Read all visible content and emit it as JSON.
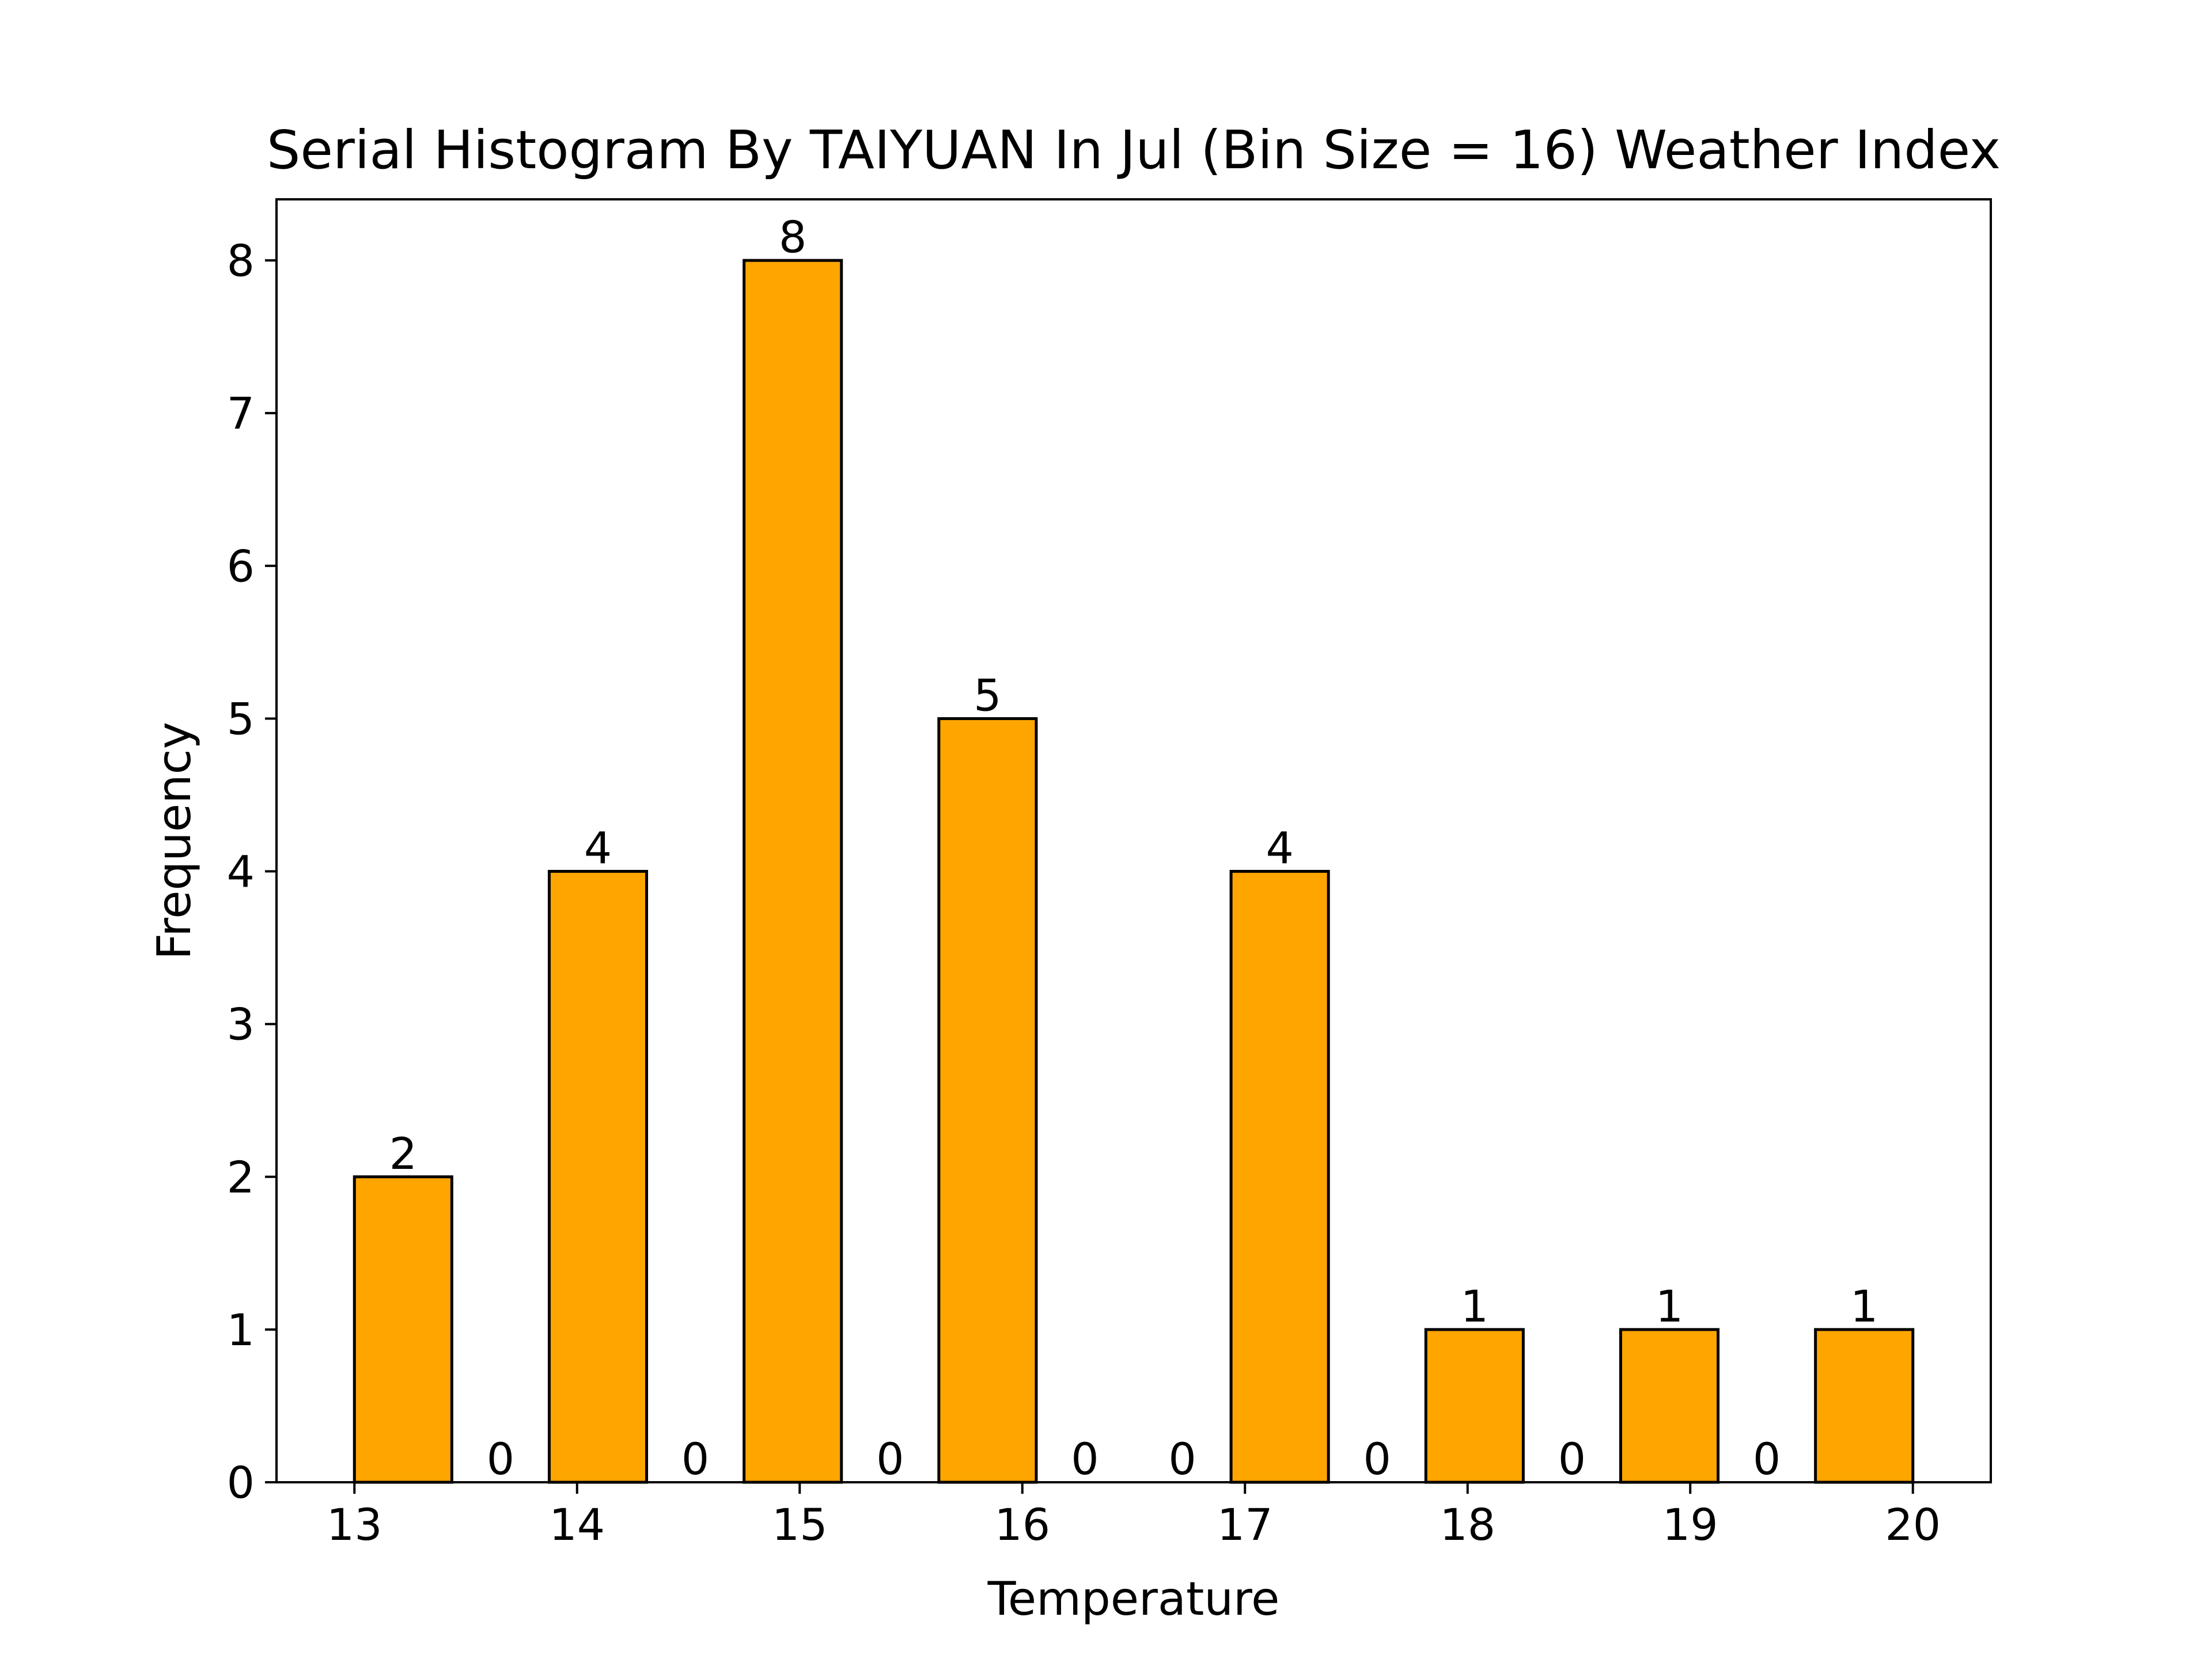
{
  "chart_data": {
    "type": "bar",
    "title": "Serial Histogram By TAIYUAN In Jul (Bin Size = 16) Weather Index",
    "xlabel": "Temperature",
    "ylabel": "Frequency",
    "bin_size": 16,
    "bin_edges": [
      13.0,
      13.4375,
      13.875,
      14.3125,
      14.75,
      15.1875,
      15.625,
      16.0625,
      16.5,
      16.9375,
      17.375,
      17.8125,
      18.25,
      18.6875,
      19.125,
      19.5625,
      20.0
    ],
    "values": [
      2,
      0,
      4,
      0,
      8,
      0,
      5,
      0,
      0,
      4,
      0,
      1,
      0,
      1,
      0,
      1
    ],
    "xlim": [
      12.65,
      20.35
    ],
    "ylim": [
      0,
      8.4
    ],
    "xticks": [
      13,
      14,
      15,
      16,
      17,
      18,
      19,
      20
    ],
    "yticks": [
      0,
      1,
      2,
      3,
      4,
      5,
      6,
      7,
      8
    ],
    "bar_color": "#FFA500",
    "edge_color": "#000000",
    "grid": false,
    "legend": null
  }
}
